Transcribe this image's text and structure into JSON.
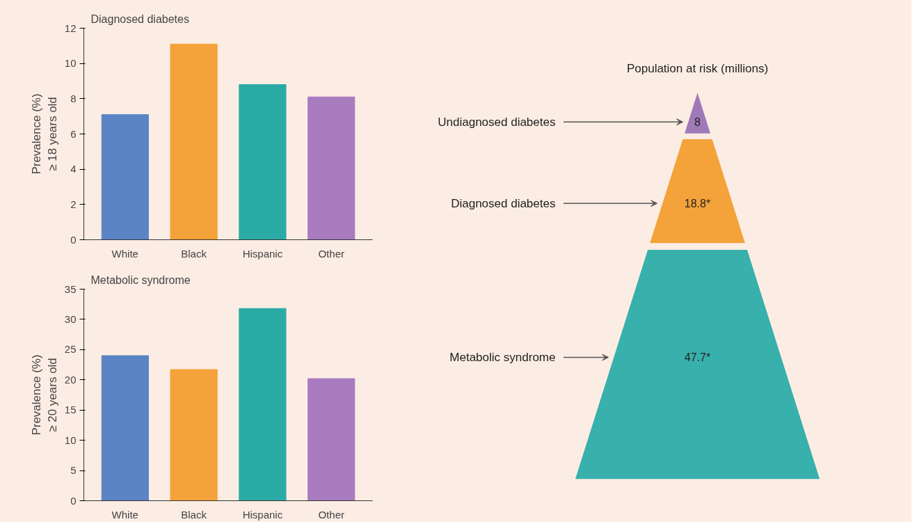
{
  "chart_data": [
    {
      "type": "bar",
      "title": "Diagnosed diabetes",
      "ylabel": "Prevalence (%)\n≥ 18 years old",
      "categories": [
        "White",
        "Black",
        "Hispanic",
        "Other"
      ],
      "values": [
        7.1,
        11.1,
        8.8,
        8.1
      ],
      "colors": [
        "#5b84c4",
        "#f4a23a",
        "#2aaba6",
        "#a97bbf"
      ],
      "ylim": [
        0,
        12
      ],
      "yticks": [
        0,
        2,
        4,
        6,
        8,
        10,
        12
      ]
    },
    {
      "type": "bar",
      "title": "Metabolic syndrome",
      "ylabel": "Prevalence (%)\n≥ 20 years old",
      "categories": [
        "White",
        "Black",
        "Hispanic",
        "Other"
      ],
      "values": [
        24.0,
        21.7,
        31.8,
        20.2
      ],
      "colors": [
        "#5b84c4",
        "#f4a23a",
        "#2aaba6",
        "#a97bbf"
      ],
      "ylim": [
        0,
        35
      ],
      "yticks": [
        0,
        5,
        10,
        15,
        20,
        25,
        30,
        35
      ]
    },
    {
      "type": "other",
      "title": "Population at risk (millions)",
      "categories": [
        "Undiagnosed diabetes",
        "Diagnosed diabetes",
        "Metabolic syndrome"
      ],
      "values": [
        8,
        18.8,
        47.7
      ],
      "value_labels": [
        "8",
        "18.8*",
        "47.7*"
      ],
      "colors": [
        "#a07ab8",
        "#f4a33a",
        "#38b0ac"
      ]
    }
  ]
}
